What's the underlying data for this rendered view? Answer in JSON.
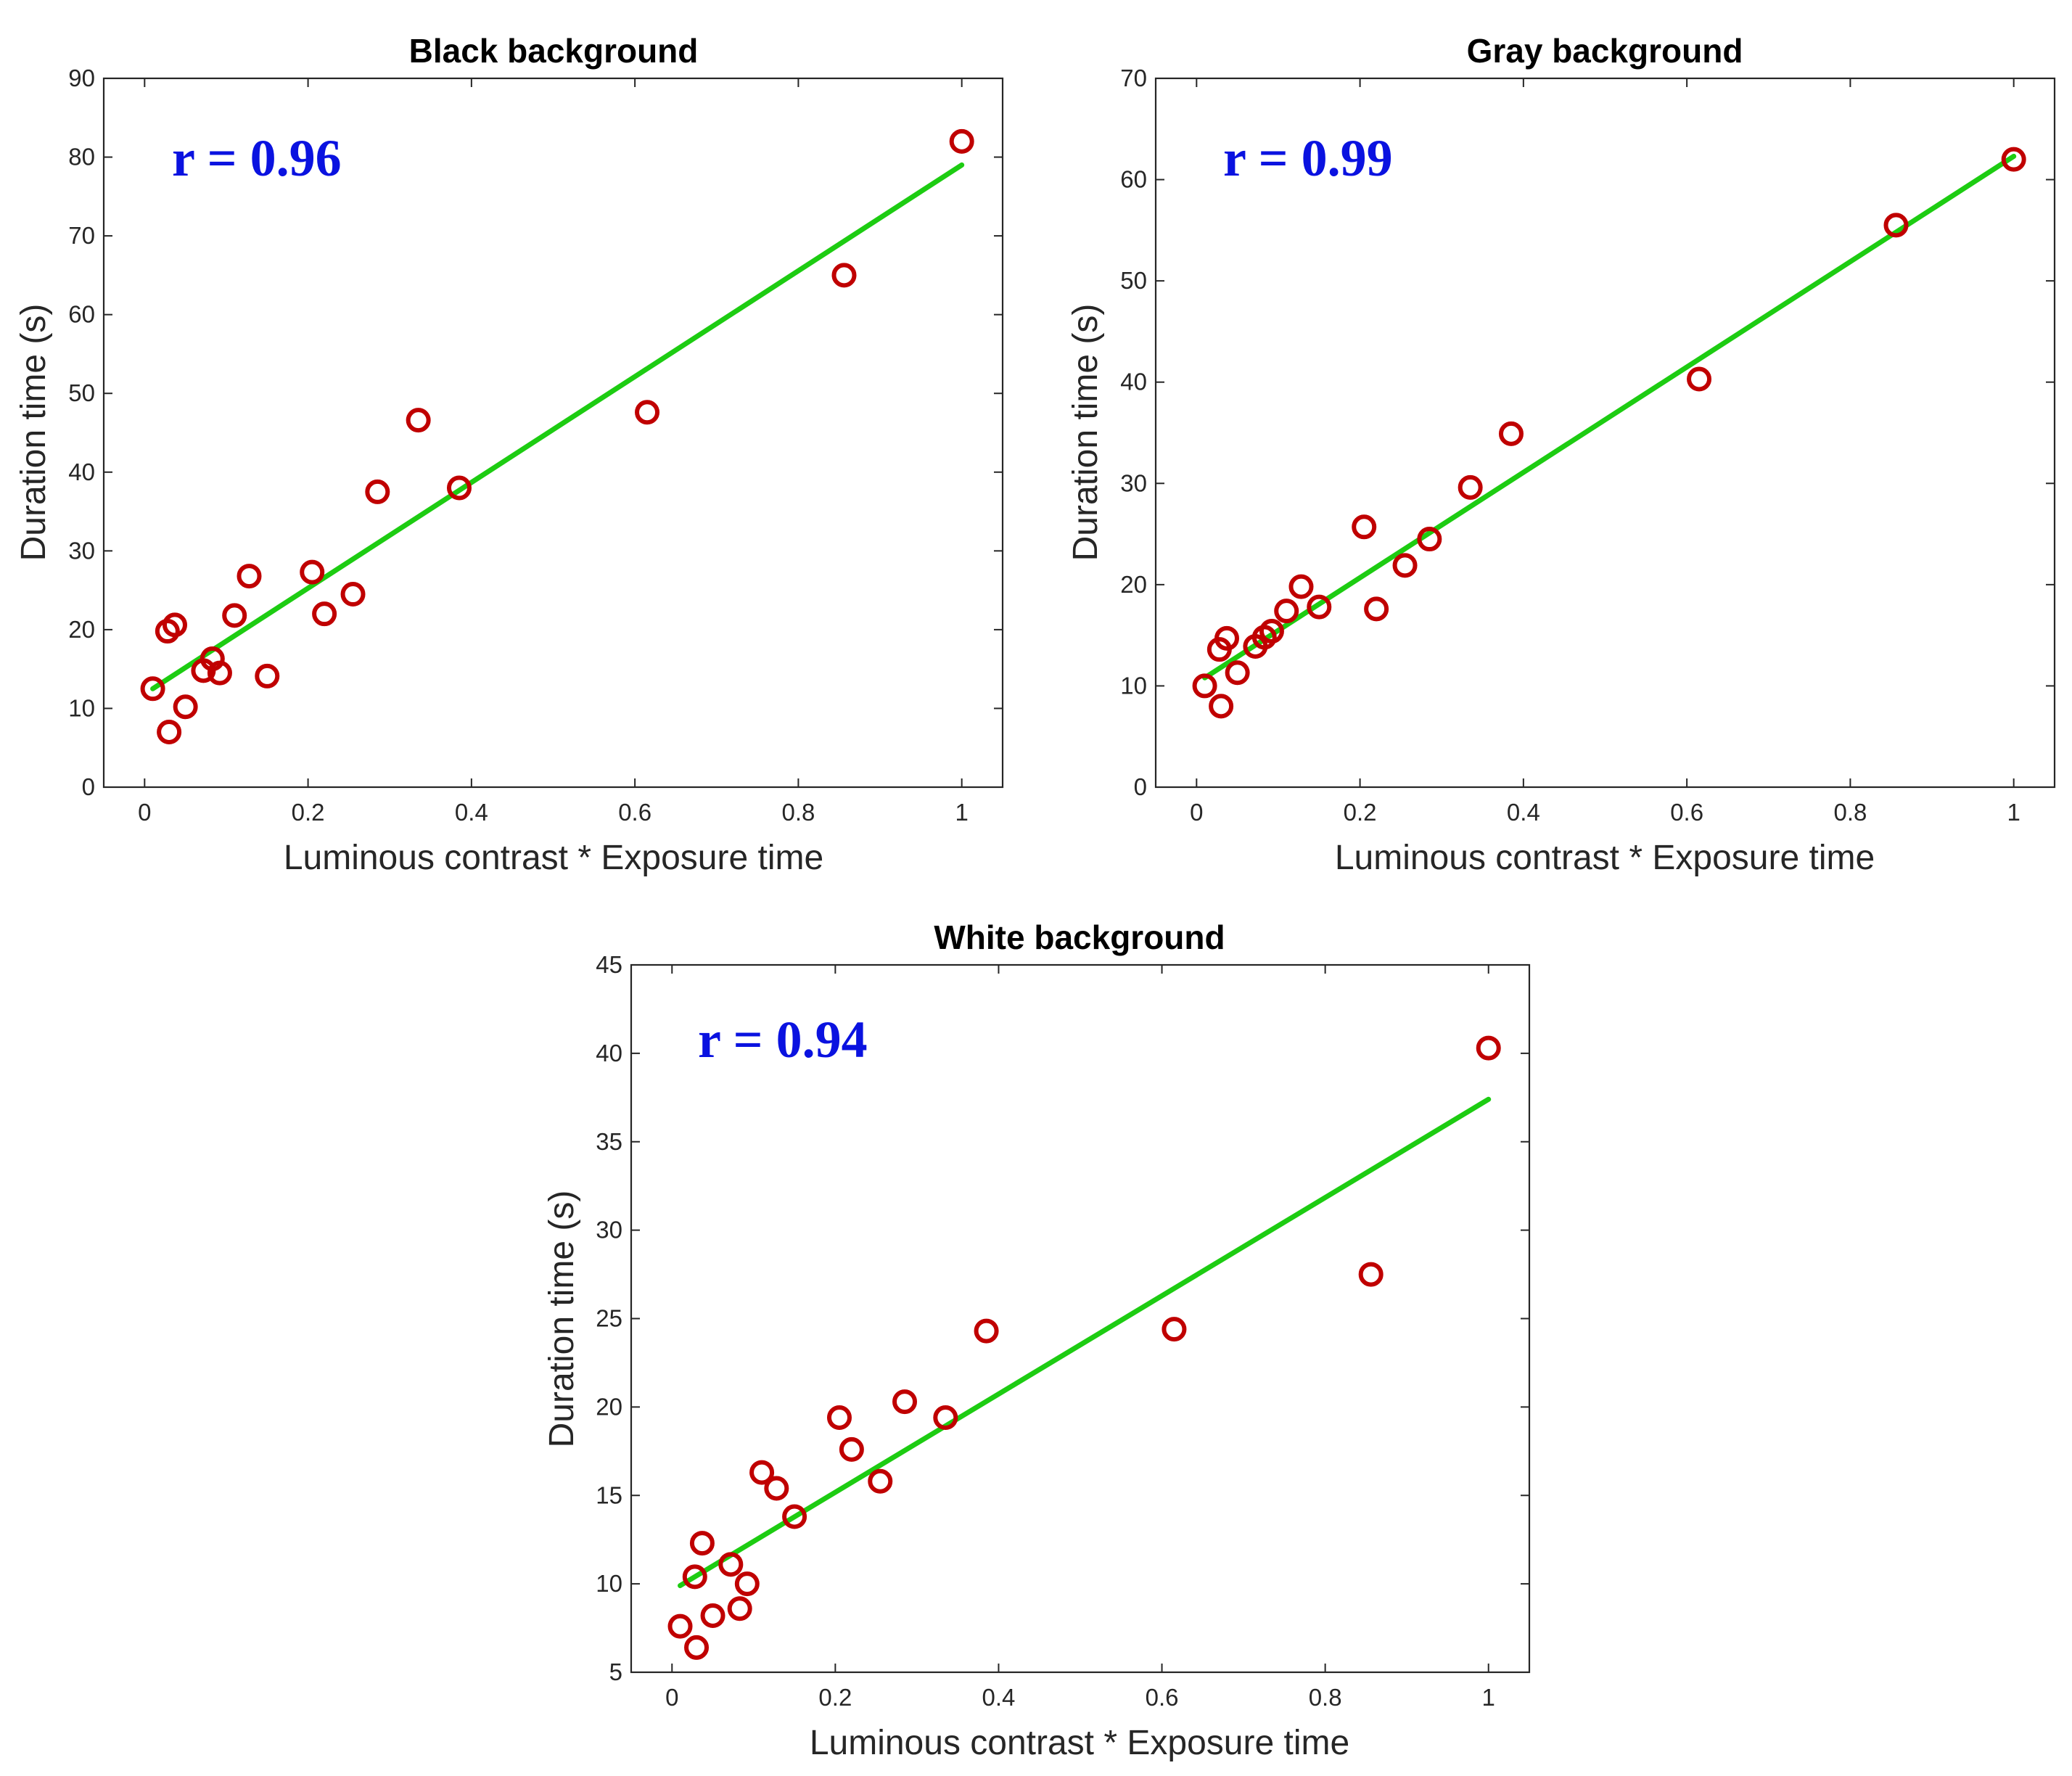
{
  "colors": {
    "marker": "#c00000",
    "fit": "#1dcc12",
    "annotation": "#0a12e0",
    "axis": "#262626"
  },
  "chart_data": [
    {
      "type": "scatter",
      "title": "Black background",
      "xlabel": "Luminous contrast * Exposure time",
      "ylabel": "Duration time (s)",
      "xlim": [
        -0.05,
        1.05
      ],
      "ylim": [
        0,
        90
      ],
      "xticks": [
        0,
        0.2,
        0.4,
        0.6,
        0.8,
        1
      ],
      "xticklabels": [
        "0",
        "0.2",
        "0.4",
        "0.6",
        "0.8",
        "1"
      ],
      "yticks": [
        0,
        10,
        20,
        30,
        40,
        50,
        60,
        70,
        80,
        90
      ],
      "yticklabels": [
        "0",
        "10",
        "20",
        "30",
        "40",
        "50",
        "60",
        "70",
        "80",
        "90"
      ],
      "annotation": "r = 0.96",
      "points": [
        [
          0.01,
          12.5
        ],
        [
          0.03,
          7.0
        ],
        [
          0.028,
          19.8
        ],
        [
          0.037,
          20.6
        ],
        [
          0.05,
          10.2
        ],
        [
          0.072,
          14.8
        ],
        [
          0.083,
          16.3
        ],
        [
          0.092,
          14.5
        ],
        [
          0.11,
          21.8
        ],
        [
          0.128,
          26.8
        ],
        [
          0.15,
          14.1
        ],
        [
          0.205,
          27.3
        ],
        [
          0.22,
          22.0
        ],
        [
          0.255,
          24.5
        ],
        [
          0.285,
          37.5
        ],
        [
          0.335,
          46.6
        ],
        [
          0.385,
          38.0
        ],
        [
          0.615,
          47.6
        ],
        [
          0.856,
          65.0
        ],
        [
          1.0,
          82.0
        ]
      ],
      "fit": [
        [
          0.01,
          12.5
        ],
        [
          1.0,
          79.0
        ]
      ]
    },
    {
      "type": "scatter",
      "title": "Gray background",
      "xlabel": "Luminous contrast * Exposure time",
      "ylabel": "Duration time (s)",
      "xlim": [
        -0.05,
        1.05
      ],
      "ylim": [
        0,
        70
      ],
      "xticks": [
        0,
        0.2,
        0.4,
        0.6,
        0.8,
        1
      ],
      "xticklabels": [
        "0",
        "0.2",
        "0.4",
        "0.6",
        "0.8",
        "1"
      ],
      "yticks": [
        0,
        10,
        20,
        30,
        40,
        50,
        60,
        70
      ],
      "yticklabels": [
        "0",
        "10",
        "20",
        "30",
        "40",
        "50",
        "60",
        "70"
      ],
      "annotation": "r = 0.99",
      "points": [
        [
          0.01,
          10.0
        ],
        [
          0.03,
          8.0
        ],
        [
          0.028,
          13.6
        ],
        [
          0.037,
          14.7
        ],
        [
          0.05,
          11.3
        ],
        [
          0.072,
          13.9
        ],
        [
          0.083,
          14.8
        ],
        [
          0.092,
          15.4
        ],
        [
          0.11,
          17.4
        ],
        [
          0.128,
          19.8
        ],
        [
          0.15,
          17.8
        ],
        [
          0.205,
          25.7
        ],
        [
          0.22,
          17.6
        ],
        [
          0.255,
          21.9
        ],
        [
          0.285,
          24.5
        ],
        [
          0.335,
          29.6
        ],
        [
          0.385,
          34.9
        ],
        [
          0.615,
          40.3
        ],
        [
          0.856,
          55.5
        ],
        [
          1.0,
          62.0
        ]
      ],
      "fit": [
        [
          0.01,
          10.8
        ],
        [
          1.0,
          62.3
        ]
      ]
    },
    {
      "type": "scatter",
      "title": "White background",
      "xlabel": "Luminous contrast * Exposure time",
      "ylabel": "Duration time (s)",
      "xlim": [
        -0.05,
        1.05
      ],
      "ylim": [
        5,
        45
      ],
      "xticks": [
        0,
        0.2,
        0.4,
        0.6,
        0.8,
        1
      ],
      "xticklabels": [
        "0",
        "0.2",
        "0.4",
        "0.6",
        "0.8",
        "1"
      ],
      "yticks": [
        5,
        10,
        15,
        20,
        25,
        30,
        35,
        40,
        45
      ],
      "yticklabels": [
        "5",
        "10",
        "15",
        "20",
        "25",
        "30",
        "35",
        "40",
        "45"
      ],
      "annotation": "r = 0.94",
      "points": [
        [
          0.01,
          7.6
        ],
        [
          0.03,
          6.4
        ],
        [
          0.028,
          10.4
        ],
        [
          0.037,
          12.3
        ],
        [
          0.05,
          8.2
        ],
        [
          0.072,
          11.1
        ],
        [
          0.083,
          8.6
        ],
        [
          0.092,
          10.0
        ],
        [
          0.11,
          16.3
        ],
        [
          0.128,
          15.4
        ],
        [
          0.15,
          13.8
        ],
        [
          0.205,
          19.4
        ],
        [
          0.22,
          17.6
        ],
        [
          0.255,
          15.8
        ],
        [
          0.285,
          20.3
        ],
        [
          0.335,
          19.4
        ],
        [
          0.385,
          24.3
        ],
        [
          0.615,
          24.4
        ],
        [
          0.856,
          27.5
        ],
        [
          1.0,
          40.3
        ]
      ],
      "fit": [
        [
          0.01,
          9.9
        ],
        [
          1.0,
          37.4
        ]
      ]
    }
  ]
}
